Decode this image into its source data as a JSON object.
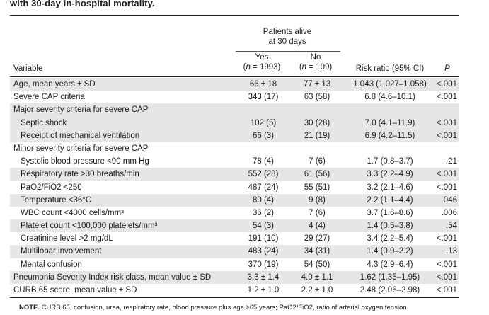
{
  "caption": "with 30-day in-hospital mortality.",
  "header": {
    "patients_alive_line1": "Patients alive",
    "patients_alive_line2": "at 30 days",
    "yes_label": "Yes",
    "yes_n": "(n = 1993)",
    "no_label": "No",
    "no_n": "(n = 109)",
    "variable": "Variable",
    "risk_ratio": "Risk ratio (95% CI)",
    "p": "P"
  },
  "rows": [
    {
      "variable": "Age, mean years ± SD",
      "yes": "66 ± 18",
      "no": "77 ± 13",
      "risk": "1.043 (1.027–1.058)",
      "p": "<.001",
      "indent": false,
      "shade": true
    },
    {
      "variable": "Severe CAP criteria",
      "yes": "343 (17)",
      "no": "63 (58)",
      "risk": "6.8 (4.6–10.1)",
      "p": "<.001",
      "indent": false,
      "shade": false
    },
    {
      "variable": "Major severity criteria for severe CAP",
      "yes": "",
      "no": "",
      "risk": "",
      "p": "",
      "indent": false,
      "shade": true
    },
    {
      "variable": "Septic shock",
      "yes": "102 (5)",
      "no": "30 (28)",
      "risk": "7.0 (4.1–11.9)",
      "p": "<.001",
      "indent": true,
      "shade": true
    },
    {
      "variable": "Receipt of mechanical ventilation",
      "yes": "66 (3)",
      "no": "21 (19)",
      "risk": "6.9 (4.2–11.5)",
      "p": "<.001",
      "indent": true,
      "shade": true
    },
    {
      "variable": "Minor severity criteria for severe CAP",
      "yes": "",
      "no": "",
      "risk": "",
      "p": "",
      "indent": false,
      "shade": false
    },
    {
      "variable": "Systolic blood pressure <90 mm Hg",
      "yes": "78 (4)",
      "no": "7 (6)",
      "risk": "1.7 (0.8–3.7)",
      "p": ".21",
      "indent": true,
      "shade": false
    },
    {
      "variable": "Respiratory rate >30 breaths/min",
      "yes": "552 (28)",
      "no": "61 (56)",
      "risk": "3.3 (2.2–4.9)",
      "p": "<.001",
      "indent": true,
      "shade": true
    },
    {
      "variable": "PaO2/FiO2 <250",
      "yes": "487 (24)",
      "no": "55 (51)",
      "risk": "3.2 (2.1–4.6)",
      "p": "<.001",
      "indent": true,
      "shade": false
    },
    {
      "variable": "Temperature <36°C",
      "yes": "80 (4)",
      "no": "9 (8)",
      "risk": "2.2 (1.1–4.4)",
      "p": ".046",
      "indent": true,
      "shade": true
    },
    {
      "variable": "WBC count <4000 cells/mm³",
      "yes": "36 (2)",
      "no": "7 (6)",
      "risk": "3.7 (1.6–8.6)",
      "p": ".006",
      "indent": true,
      "shade": false
    },
    {
      "variable": "Platelet count <100,000 platelets/mm³",
      "yes": "54 (3)",
      "no": "4 (4)",
      "risk": "1.4 (0.5–3.8)",
      "p": ".54",
      "indent": true,
      "shade": true
    },
    {
      "variable": "Creatinine level >2 mg/dL",
      "yes": "191 (10)",
      "no": "29 (27)",
      "risk": "3.4 (2.2–5.4)",
      "p": "<.001",
      "indent": true,
      "shade": false
    },
    {
      "variable": "Multilobar involvement",
      "yes": "483 (24)",
      "no": "34 (31)",
      "risk": "1.4 (0.9–2.2)",
      "p": ".13",
      "indent": true,
      "shade": true
    },
    {
      "variable": "Mental confusion",
      "yes": "370 (19)",
      "no": "54 (50)",
      "risk": "4.3 (2.9–6.4)",
      "p": "<.001",
      "indent": true,
      "shade": false
    },
    {
      "variable": "Pneumonia Severity Index risk class, mean value ± SD",
      "yes": "3.3 ± 1.4",
      "no": "4.0 ± 1.1",
      "risk": "1.62 (1.35–1.95)",
      "p": "<.001",
      "indent": false,
      "shade": true
    },
    {
      "variable": "CURB 65 score, mean value ± SD",
      "yes": "1.2 ± 1.0",
      "no": "2.2 ± 1.0",
      "risk": "2.48 (2.06–2.98)",
      "p": "<.001",
      "indent": false,
      "shade": false
    }
  ],
  "note": {
    "label": "NOTE.",
    "text": "CURB 65, confusion, urea, respiratory rate, blood pressure plus age ≥65 years; PaO2/FiO2, ratio of arterial oxygen tension"
  }
}
